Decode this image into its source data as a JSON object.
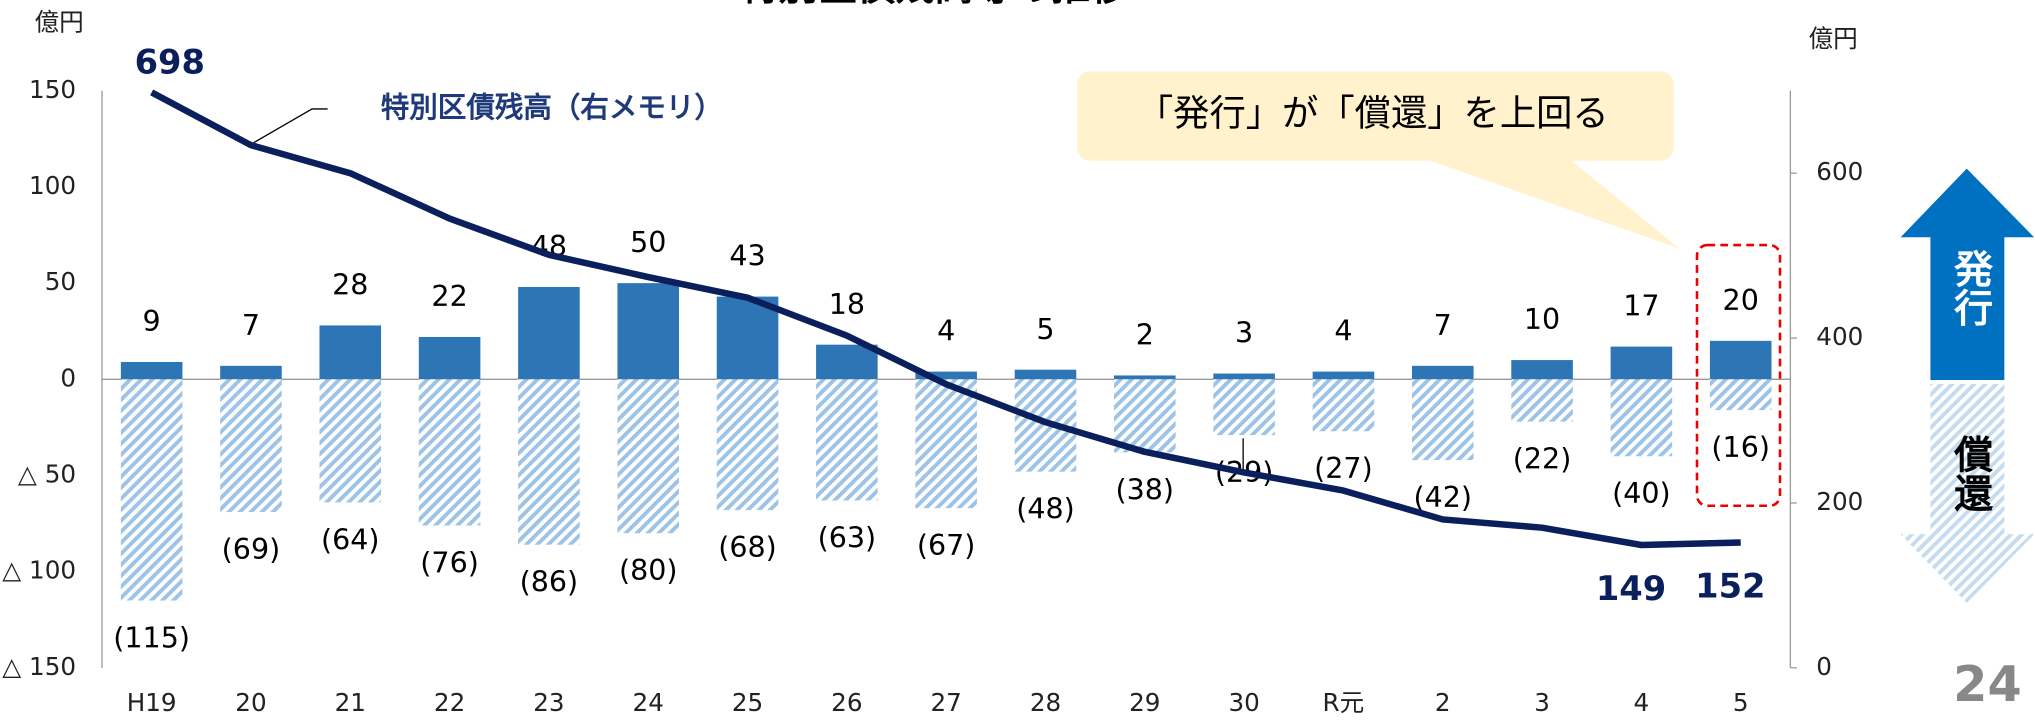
{
  "chart_data": {
    "type": "bar",
    "title": "特別区債残高等の推移",
    "y_label": "億円",
    "y2_label": "億円",
    "categories": [
      "H19",
      "20",
      "21",
      "22",
      "23",
      "24",
      "25",
      "26",
      "27",
      "28",
      "29",
      "30",
      "R元",
      "2",
      "3",
      "4",
      "5"
    ],
    "series": [
      {
        "name": "発行",
        "color": "#2e75b6",
        "values": [
          9,
          7,
          28,
          22,
          48,
          50,
          43,
          18,
          4,
          5,
          2,
          3,
          4,
          7,
          10,
          17,
          20
        ]
      },
      {
        "name": "償還",
        "color": "#9dc3e6",
        "pattern": "hatched",
        "values": [
          -115,
          -69,
          -64,
          -76,
          -86,
          -80,
          -68,
          -63,
          -67,
          -48,
          -38,
          -29,
          -27,
          -42,
          -22,
          -40,
          -16
        ],
        "value_labels": [
          "(115)",
          "(69)",
          "(64)",
          "(76)",
          "(86)",
          "(80)",
          "(68)",
          "(63)",
          "(67)",
          "(48)",
          "(38)",
          "(29)",
          "(27)",
          "(42)",
          "(22)",
          "(40)",
          "(16)"
        ]
      },
      {
        "name": "特別区債残高（右メモリ）",
        "type": "line",
        "axis": "y2",
        "color": "#0a1f5c",
        "values": [
          698,
          634,
          600,
          545,
          501,
          474,
          449,
          403,
          344,
          298,
          262,
          237,
          215,
          180,
          170,
          149,
          152
        ],
        "value_labels": [
          "698",
          null,
          null,
          null,
          null,
          null,
          null,
          null,
          null,
          null,
          null,
          null,
          null,
          null,
          null,
          "149",
          "152"
        ]
      }
    ],
    "ylim": [
      -150,
      150
    ],
    "yticks": [
      150,
      100,
      50,
      0,
      {
        "value": -50,
        "label": "△ 50"
      },
      {
        "value": -100,
        "label": "△ 100"
      },
      {
        "value": -150,
        "label": "△ 150"
      }
    ],
    "y2lim": [
      0,
      700
    ],
    "y2ticks": [
      0,
      200,
      400,
      600
    ],
    "annotation": "「発行」が「償還」を上回る",
    "page_number": "24"
  }
}
